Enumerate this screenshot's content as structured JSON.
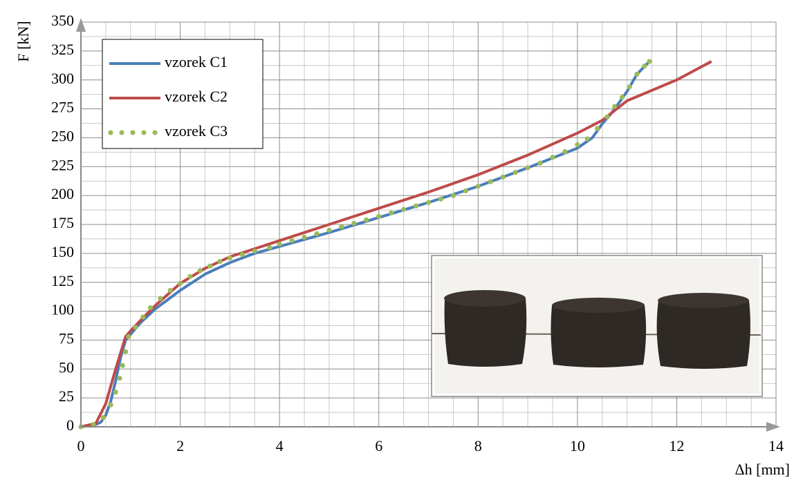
{
  "chart_data": {
    "type": "line",
    "xlabel": "Δh [mm]",
    "ylabel": "F [kN]",
    "xlim": [
      0,
      14
    ],
    "xticks": [
      0,
      2,
      4,
      6,
      8,
      10,
      12,
      14
    ],
    "ylim": [
      0,
      350
    ],
    "yticks": [
      0,
      25,
      50,
      75,
      100,
      125,
      150,
      175,
      200,
      225,
      250,
      275,
      300,
      325,
      350
    ],
    "grid": true,
    "legend": "upper left",
    "series": [
      {
        "name": "vzorek C1",
        "color": "#4a7ebb",
        "marker": "line",
        "x": [
          0,
          0.3,
          0.4,
          0.5,
          0.6,
          0.7,
          0.8,
          0.9,
          1.0,
          1.2,
          1.5,
          2,
          2.5,
          3,
          3.5,
          4,
          5,
          6,
          7,
          8,
          9,
          10,
          10.3,
          10.5,
          10.7,
          11,
          11.2,
          11.45
        ],
        "values": [
          0,
          2,
          4,
          10,
          22,
          40,
          60,
          75,
          80,
          90,
          102,
          118,
          132,
          142,
          150,
          156,
          168,
          181,
          194,
          208,
          224,
          241,
          250,
          262,
          272,
          290,
          305,
          316
        ]
      },
      {
        "name": "vzorek C2",
        "color": "#be4b48",
        "marker": "line",
        "x": [
          0,
          0.3,
          0.5,
          0.7,
          0.9,
          1.0,
          1.2,
          1.5,
          2,
          2.5,
          3,
          4,
          5,
          6,
          7,
          8,
          9,
          10,
          10.5,
          11,
          12,
          12.7
        ],
        "values": [
          0,
          3,
          20,
          50,
          78,
          83,
          92,
          105,
          124,
          137,
          147,
          161,
          175,
          189,
          203,
          218,
          235,
          254,
          265,
          282,
          300,
          316
        ]
      },
      {
        "name": "vzorek C3",
        "color": "#9bbb59",
        "marker": "dots",
        "x": [
          0,
          0.25,
          0.45,
          0.6,
          0.7,
          0.78,
          0.84,
          0.9,
          0.96,
          1.1,
          1.25,
          1.4,
          1.6,
          1.8,
          2,
          2.2,
          2.4,
          2.6,
          2.8,
          3,
          3.25,
          3.5,
          3.8,
          4,
          4.25,
          4.5,
          4.75,
          5,
          5.25,
          5.5,
          5.75,
          6,
          6.25,
          6.5,
          6.75,
          7,
          7.25,
          7.5,
          7.75,
          8,
          8.25,
          8.5,
          8.75,
          9,
          9.25,
          9.5,
          9.75,
          10,
          10.2,
          10.4,
          10.6,
          10.75,
          10.9,
          11.05,
          11.2,
          11.35,
          11.45
        ],
        "values": [
          0,
          2,
          8,
          19,
          30,
          42,
          53,
          65,
          78,
          86,
          95,
          103,
          111,
          118,
          124,
          130,
          135,
          139,
          143,
          146,
          149,
          152,
          155,
          158,
          161,
          164,
          167,
          170,
          173,
          176,
          179,
          182,
          185,
          188,
          191,
          194,
          197,
          200,
          204,
          208,
          212,
          216,
          220,
          224,
          228,
          233,
          238,
          244,
          249,
          258,
          268,
          277,
          285,
          294,
          305,
          312,
          316
        ]
      }
    ]
  }
}
